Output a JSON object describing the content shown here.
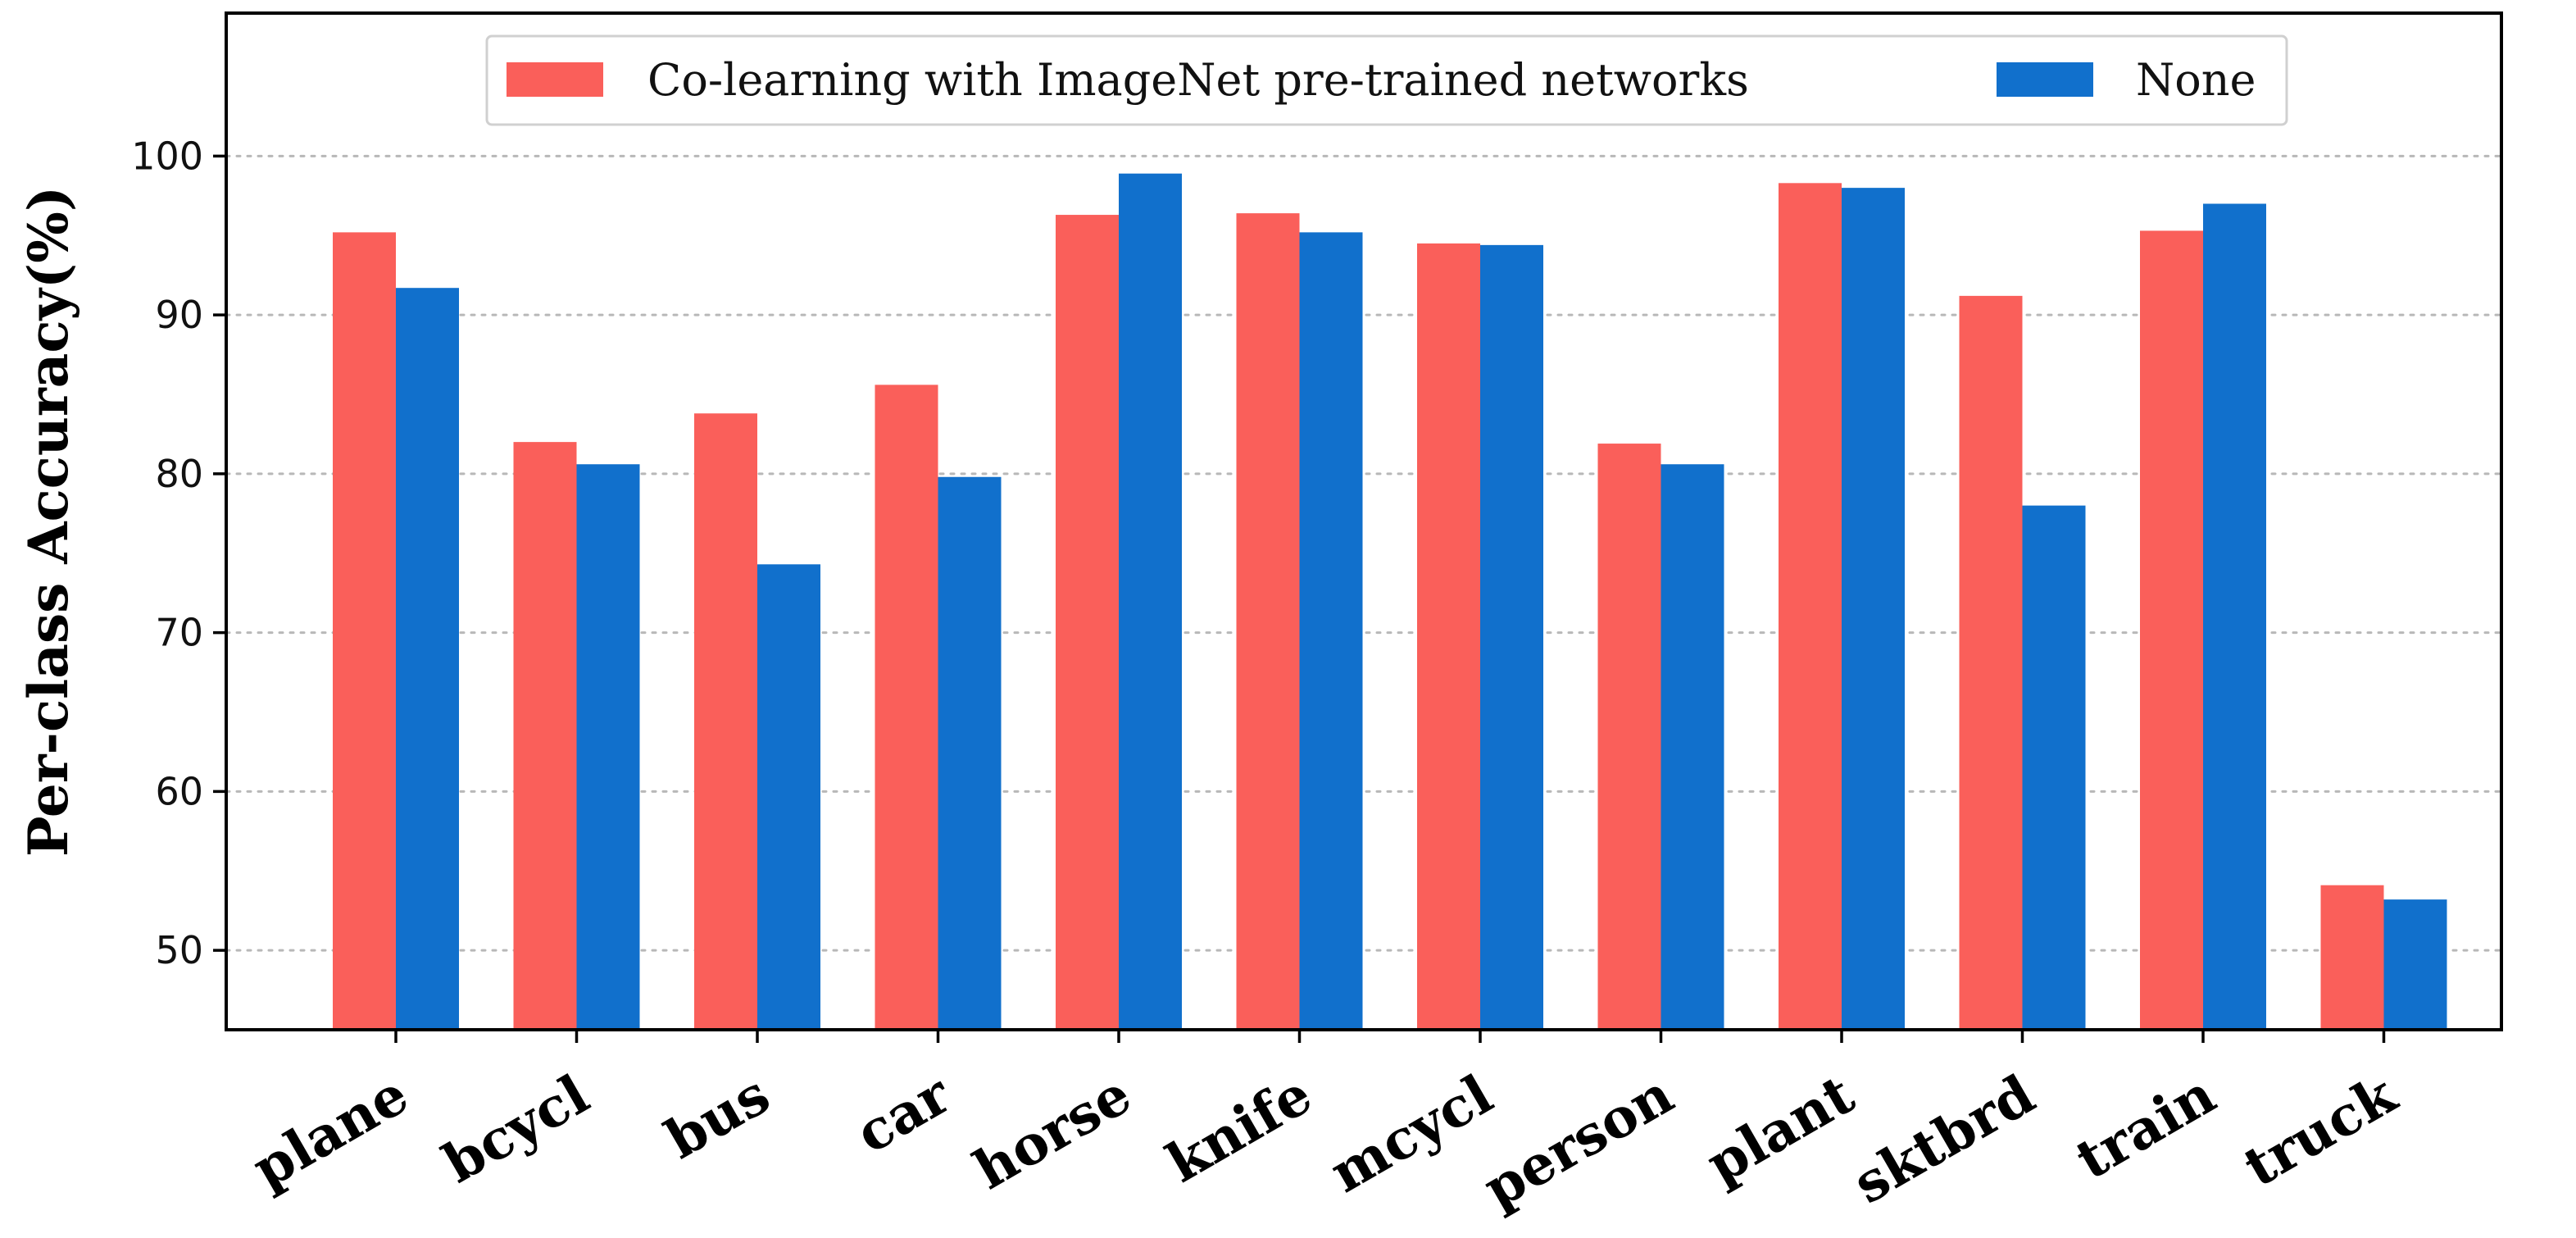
{
  "chart_data": {
    "type": "bar",
    "title": "",
    "xlabel": "",
    "ylabel": "Per-class Accuracy(%)",
    "ylim": [
      45,
      109
    ],
    "yticks": [
      50,
      60,
      70,
      80,
      90,
      100
    ],
    "grid": "horizontal-dotted",
    "legend_position": "top-center",
    "categories": [
      "plane",
      "bcycl",
      "bus",
      "car",
      "horse",
      "knife",
      "mcycl",
      "person",
      "plant",
      "sktbrd",
      "train",
      "truck"
    ],
    "series": [
      {
        "name": "Co-learning with ImageNet pre-trained networks",
        "color": "#fa5f5a",
        "values": [
          95.2,
          82.0,
          83.8,
          85.6,
          96.3,
          96.4,
          94.5,
          81.9,
          98.3,
          91.2,
          95.3,
          54.1
        ]
      },
      {
        "name": "None",
        "color": "#1170cc",
        "values": [
          91.7,
          80.6,
          74.3,
          79.8,
          98.9,
          95.2,
          94.4,
          80.6,
          98.0,
          78.0,
          97.0,
          53.2
        ]
      }
    ]
  }
}
